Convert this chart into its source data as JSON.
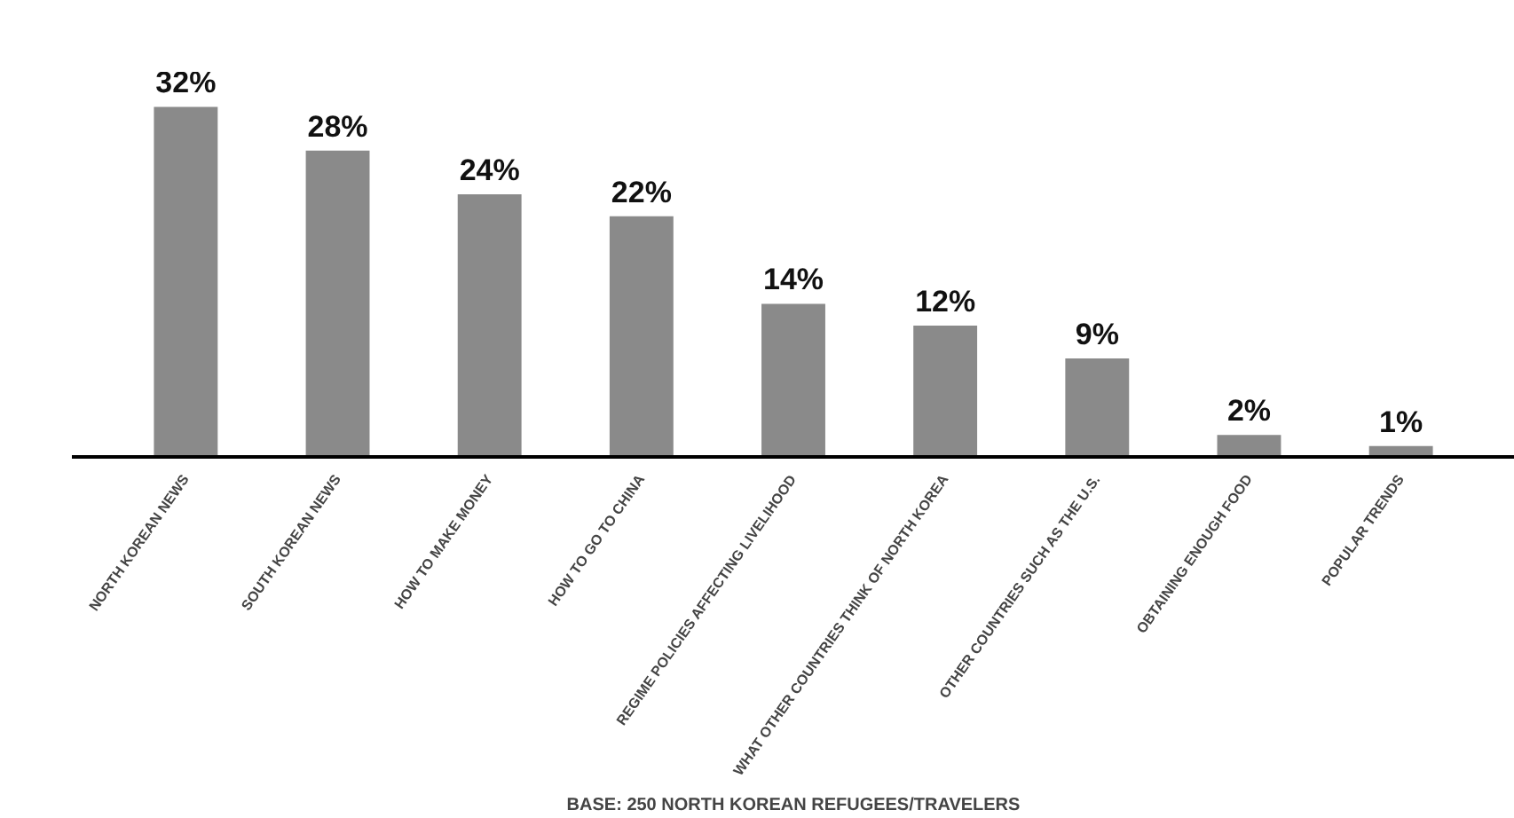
{
  "chart_data": {
    "type": "bar",
    "categories": [
      "NORTH KOREAN NEWS",
      "SOUTH KOREAN NEWS",
      "HOW TO MAKE MONEY",
      "HOW TO GO TO CHINA",
      "REGIME POLICIES AFFECTING LIVELIHOOD",
      "WHAT OTHER COUNTRIES THINK OF NORTH KOREA",
      "OTHER COUNTRIES SUCH AS THE U.S.",
      "OBTAINING ENOUGH FOOD",
      "POPULAR TRENDS"
    ],
    "values": [
      32,
      28,
      24,
      22,
      14,
      12,
      9,
      2,
      1
    ],
    "value_labels": [
      "32%",
      "28%",
      "24%",
      "22%",
      "14%",
      "12%",
      "9%",
      "2%",
      "1%"
    ],
    "color": "#8a8a8a",
    "annotations": [
      "BASE: 250 NORTH KOREAN REFUGEES/TRAVELERS"
    ],
    "grid": false
  }
}
